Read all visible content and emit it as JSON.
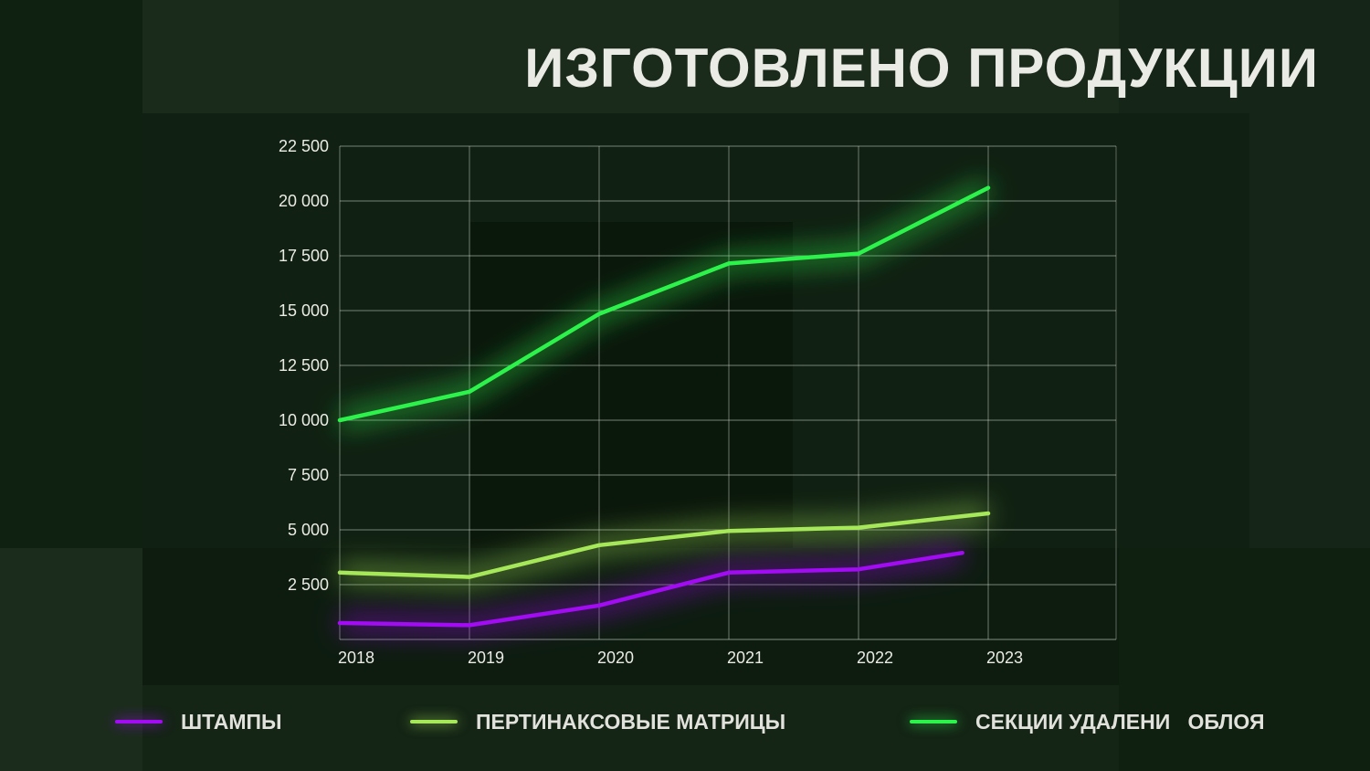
{
  "title": "ИЗГОТОВЛЕНО ПРОДУКЦИИ",
  "chart_data": {
    "type": "line",
    "title": "ИЗГОТОВЛЕНО ПРОДУКЦИИ",
    "categories": [
      "2018",
      "2019",
      "2020",
      "2021",
      "2022",
      "2023"
    ],
    "x_tick_labels": [
      "2018",
      "2019",
      "2020",
      "2021",
      "2022",
      "2023"
    ],
    "y_tick_labels": [
      "22 500",
      "20 000",
      "17 500",
      "15 000",
      "12 500",
      "10 000",
      "7 500",
      "5 000",
      "2 500"
    ],
    "y_tick_values": [
      22500,
      20000,
      17500,
      15000,
      12500,
      10000,
      7500,
      5000,
      2500
    ],
    "ylim": [
      0,
      22500
    ],
    "grid": true,
    "legend_position": "bottom",
    "series": [
      {
        "name": "ШТАМПЫ",
        "color": "#a10cf2",
        "x": [
          2018,
          2019,
          2020,
          2021,
          2022,
          2022.8
        ],
        "values": [
          750,
          650,
          1550,
          3050,
          3200,
          3950
        ]
      },
      {
        "name": "ПЕРТИНАКСОВЫЕ МАТРИЦЫ",
        "color": "#a6e85a",
        "x": [
          2018,
          2019,
          2020,
          2021,
          2022,
          2023
        ],
        "values": [
          3050,
          2850,
          4300,
          4950,
          5100,
          5750
        ]
      },
      {
        "name": "СЕКЦИИ УДАЛЕНИ   ОБЛОЯ",
        "color": "#2ef24c",
        "x": [
          2018,
          2019,
          2020,
          2021,
          2022,
          2023
        ],
        "values": [
          10000,
          11300,
          14850,
          17150,
          17600,
          20600
        ]
      }
    ]
  },
  "legend": [
    {
      "label": "ШТАМПЫ",
      "color": "#a10cf2"
    },
    {
      "label": "ПЕРТИНАКСОВЫЕ МАТРИЦЫ",
      "color": "#a6e85a"
    },
    {
      "label": "СЕКЦИИ УДАЛЕНИ   ОБЛОЯ",
      "color": "#2ef24c"
    }
  ]
}
